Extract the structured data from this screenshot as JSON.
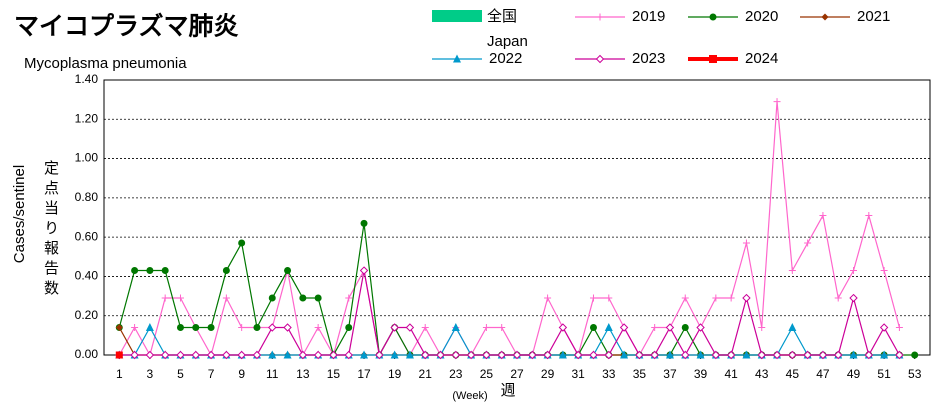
{
  "chart_data": {
    "type": "line",
    "title": "マイコプラズマ肺炎",
    "subtitle": "Mycoplasma pneumonia",
    "y_label": "Cases/sentinel",
    "y_label_ja": "定点当り報告数",
    "x_label": "(Week)",
    "x_label_ja": "週",
    "legend_area": {
      "name": "全国",
      "subname": "Japan",
      "color": "#00cc88"
    },
    "x": [
      1,
      2,
      3,
      4,
      5,
      6,
      7,
      8,
      9,
      10,
      11,
      12,
      13,
      14,
      15,
      16,
      17,
      18,
      19,
      20,
      21,
      22,
      23,
      24,
      25,
      26,
      27,
      28,
      29,
      30,
      31,
      32,
      33,
      34,
      35,
      36,
      37,
      38,
      39,
      40,
      41,
      42,
      43,
      44,
      45,
      46,
      47,
      48,
      49,
      50,
      51,
      52,
      53
    ],
    "xlim": [
      0,
      54
    ],
    "xticks": [
      1,
      3,
      5,
      7,
      9,
      11,
      13,
      15,
      17,
      19,
      21,
      23,
      25,
      27,
      29,
      31,
      33,
      35,
      37,
      39,
      41,
      43,
      45,
      47,
      49,
      51,
      53
    ],
    "ylim": [
      0,
      1.4
    ],
    "yticks": [
      {
        "value": 0,
        "label": "0.00"
      },
      {
        "value": 0.2,
        "label": "0.20"
      },
      {
        "value": 0.4,
        "label": "0.40"
      },
      {
        "value": 0.6,
        "label": "0.60"
      },
      {
        "value": 0.8,
        "label": "0.80"
      },
      {
        "value": 1.0,
        "label": "1.00"
      },
      {
        "value": 1.2,
        "label": "1.20"
      },
      {
        "value": 1.4,
        "label": "1.40"
      }
    ],
    "grid": true,
    "series": [
      {
        "name": "2019",
        "color": "#ff66cc",
        "marker": "plus",
        "values": [
          0,
          0.14,
          0,
          0.29,
          0.29,
          0.14,
          0,
          0.29,
          0.14,
          0.14,
          0.14,
          0.43,
          0,
          0.14,
          0,
          0.29,
          0.43,
          0,
          0.14,
          0,
          0.14,
          0,
          0.14,
          0,
          0.14,
          0.14,
          0,
          0,
          0.29,
          0.14,
          0,
          0.29,
          0.29,
          0.14,
          0,
          0.14,
          0.14,
          0.29,
          0.14,
          0.29,
          0.29,
          0.57,
          0.14,
          1.29,
          0.43,
          0.57,
          0.71,
          0.29,
          0.43,
          0.71,
          0.43,
          0.14,
          null
        ]
      },
      {
        "name": "2020",
        "color": "#007700",
        "marker": "circle",
        "values": [
          0.14,
          0.43,
          0.43,
          0.43,
          0.14,
          0.14,
          0.14,
          0.43,
          0.57,
          0.14,
          0.29,
          0.43,
          0.29,
          0.29,
          0,
          0.14,
          0.67,
          0,
          0.14,
          0,
          0,
          0,
          0,
          0,
          0,
          0,
          0,
          0,
          0,
          0,
          0,
          0.14,
          0,
          0,
          0,
          0,
          0,
          0.14,
          0,
          0,
          0,
          0,
          0,
          0,
          0,
          0,
          0,
          0,
          0,
          0,
          0,
          0,
          0
        ]
      },
      {
        "name": "2021",
        "color": "#993300",
        "marker": "diamond",
        "values": [
          0.14,
          0,
          0,
          0,
          0,
          0,
          0,
          0,
          0,
          0,
          0,
          0,
          0,
          0,
          0,
          0,
          0,
          0,
          0,
          0,
          0,
          0,
          0,
          0,
          0,
          0,
          0,
          0,
          0,
          0,
          0,
          0,
          0,
          0,
          0,
          0,
          0,
          0,
          0,
          0,
          0,
          0,
          0,
          0,
          0,
          0,
          0,
          0,
          0,
          0,
          0,
          0,
          null
        ]
      },
      {
        "name": "2022",
        "color": "#0099cc",
        "marker": "triangle",
        "values": [
          0,
          0,
          0.14,
          0,
          0,
          0,
          0,
          0,
          0,
          0,
          0,
          0,
          0,
          0,
          0,
          0,
          0,
          0,
          0,
          0,
          0,
          0,
          0.14,
          0,
          0,
          0,
          0,
          0,
          0,
          0,
          0,
          0,
          0.14,
          0,
          0,
          0,
          0,
          0,
          0,
          0,
          0,
          0,
          0,
          0,
          0.14,
          0,
          0,
          0,
          0,
          0,
          0,
          0,
          null
        ]
      },
      {
        "name": "2023",
        "color": "#cc0099",
        "marker": "open-diamond",
        "values": [
          0,
          0,
          0,
          0,
          0,
          0,
          0,
          0,
          0,
          0,
          0.14,
          0.14,
          0,
          0,
          0,
          0,
          0.43,
          0,
          0.14,
          0.14,
          0,
          0,
          0,
          0,
          0,
          0,
          0,
          0,
          0,
          0.14,
          0,
          0,
          0,
          0.14,
          0,
          0,
          0.14,
          0,
          0.14,
          0,
          0,
          0.29,
          0,
          0,
          0,
          0,
          0,
          0,
          0.29,
          0,
          0.14,
          0,
          null
        ]
      },
      {
        "name": "2024",
        "color": "#ff0000",
        "marker": "square",
        "values": [
          0,
          null,
          null,
          null,
          null,
          null,
          null,
          null,
          null,
          null,
          null,
          null,
          null,
          null,
          null,
          null,
          null,
          null,
          null,
          null,
          null,
          null,
          null,
          null,
          null,
          null,
          null,
          null,
          null,
          null,
          null,
          null,
          null,
          null,
          null,
          null,
          null,
          null,
          null,
          null,
          null,
          null,
          null,
          null,
          null,
          null,
          null,
          null,
          null,
          null,
          null,
          null,
          null
        ]
      }
    ]
  }
}
